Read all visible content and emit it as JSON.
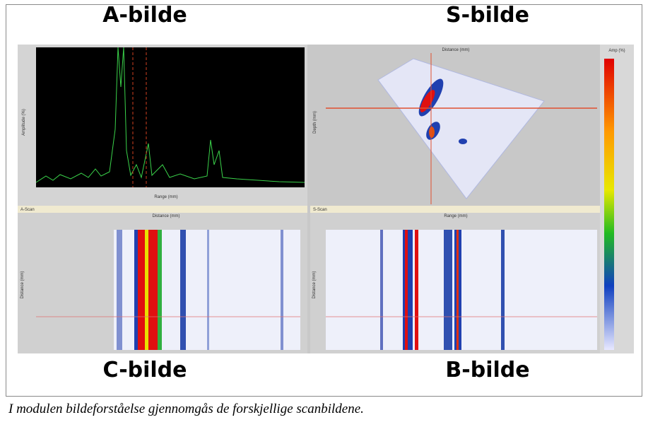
{
  "titles": {
    "a": "A-bilde",
    "s": "S-bilde",
    "c": "C-bilde",
    "b": "B-bilde"
  },
  "panels": {
    "a_scan": {
      "x_label": "Range (mm)",
      "y_label": "Amplitude (%)",
      "status": "A-Scan"
    },
    "s_scan": {
      "x_label": "Distance (mm)",
      "y_label": "Depth (mm)",
      "status": "S-Scan",
      "colorbar_label": "Amp (%)"
    },
    "c_scan": {
      "x_label": "Distance (mm)",
      "y_label": "Distance (mm)"
    },
    "b_scan": {
      "x_label": "Range (mm)",
      "y_label": "Distance (mm)"
    }
  },
  "caption": "I modulen bildeforståelse gjennomgås de forskjellige scanbildene."
}
